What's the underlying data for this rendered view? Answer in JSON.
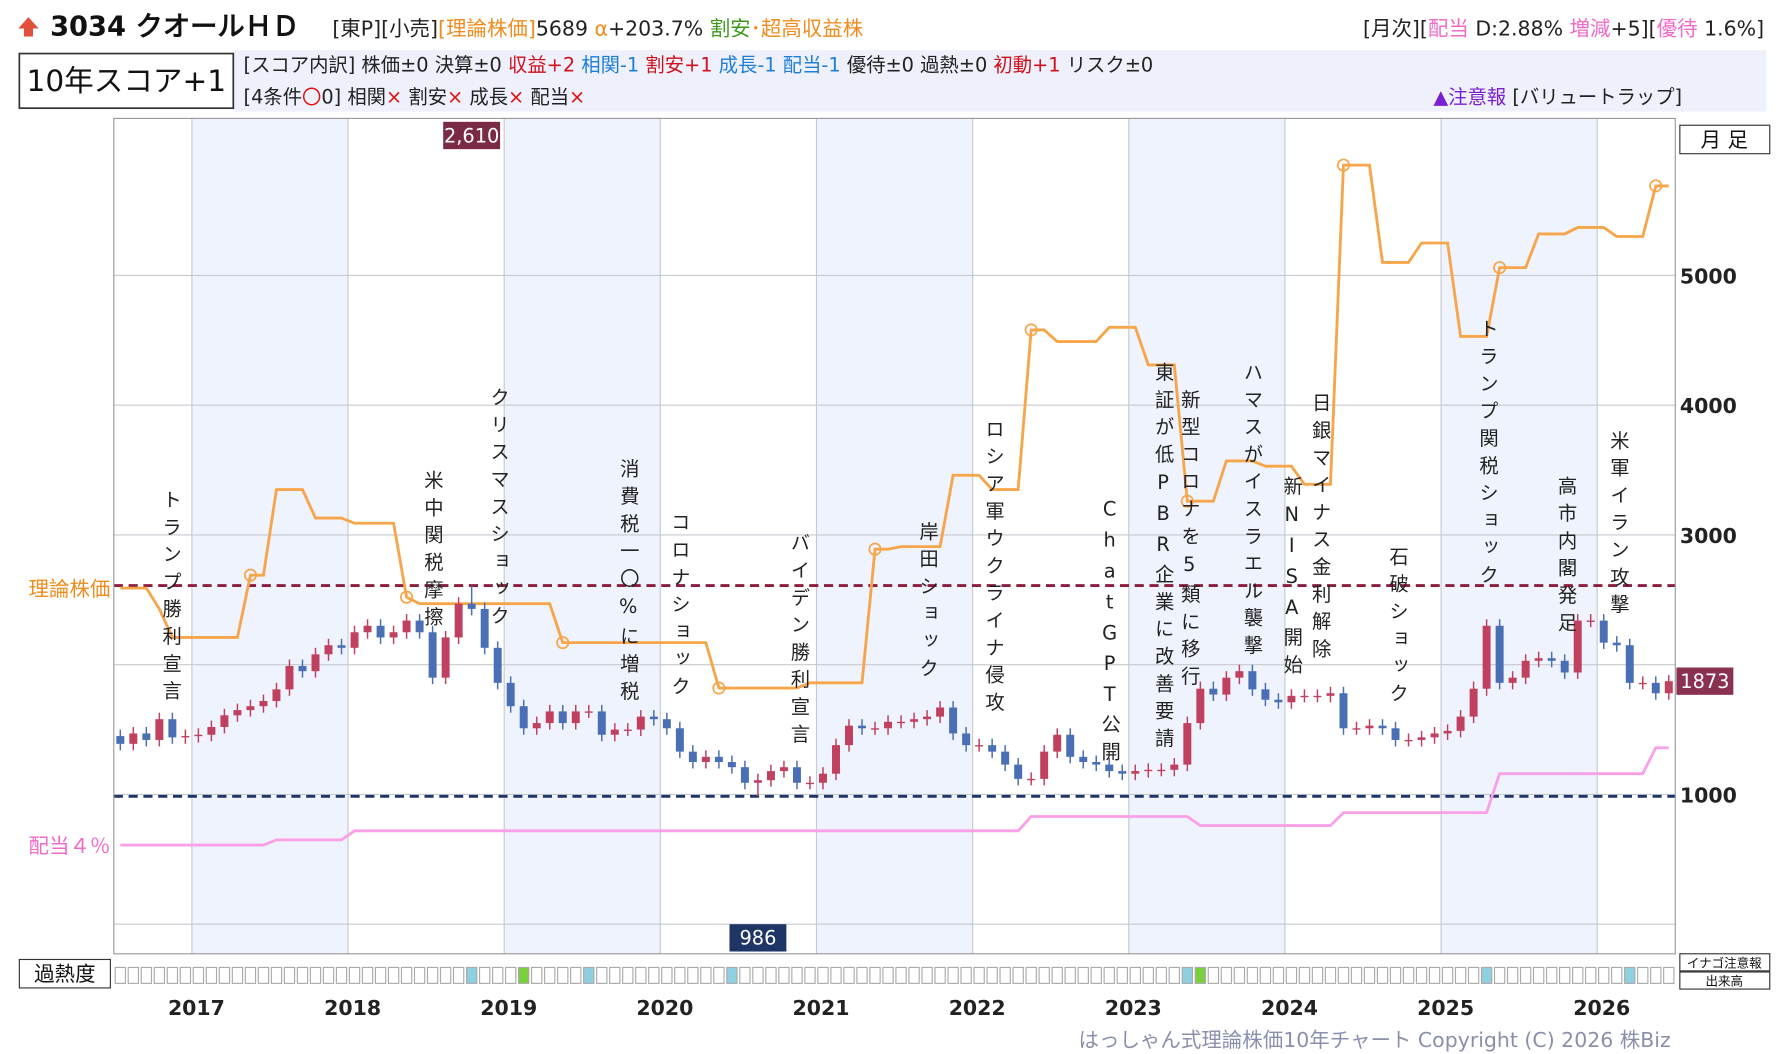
{
  "header": {
    "title": "3034 クオールＨＤ",
    "line1": [
      {
        "text": "[東P][小売]",
        "color": "#222222"
      },
      {
        "text": "[理論株価]",
        "color": "#f08c1e"
      },
      {
        "text": "5689 ",
        "color": "#222222"
      },
      {
        "text": "α",
        "color": "#f08c1e"
      },
      {
        "text": "+203.7% ",
        "color": "#222222"
      },
      {
        "text": "割安",
        "color": "#3a9a1a"
      },
      {
        "text": "･超高収益株",
        "color": "#f08c1e"
      }
    ],
    "line1_right": [
      {
        "text": "[月次][",
        "color": "#222222"
      },
      {
        "text": "配当",
        "color": "#f06bc8"
      },
      {
        "text": " D:2.88% ",
        "color": "#222222"
      },
      {
        "text": "増減",
        "color": "#f06bc8"
      },
      {
        "text": "+5][",
        "color": "#222222"
      },
      {
        "text": "優待",
        "color": "#f06bc8"
      },
      {
        "text": " 1.6%]",
        "color": "#222222"
      }
    ],
    "score": "10年スコア+1",
    "line2": [
      {
        "text": "[スコア内訳] 株価±0 決算±0 ",
        "color": "#222222"
      },
      {
        "text": "収益+2 ",
        "color": "#d0101a"
      },
      {
        "text": "相関-1 ",
        "color": "#1e7fd8"
      },
      {
        "text": "割安+1 ",
        "color": "#d0101a"
      },
      {
        "text": "成長-1 配当-1 ",
        "color": "#1e7fd8"
      },
      {
        "text": "優待±0 過熱±0 ",
        "color": "#222222"
      },
      {
        "text": "初動+1 ",
        "color": "#d0101a"
      },
      {
        "text": "リスク±0",
        "color": "#222222"
      }
    ],
    "line3": [
      {
        "text": "[4条件",
        "color": "#222222"
      },
      {
        "text": "〇",
        "color": "#e01010"
      },
      {
        "text": "0] 相関",
        "color": "#222222"
      },
      {
        "text": "× ",
        "color": "#e01010"
      },
      {
        "text": "割安",
        "color": "#222222"
      },
      {
        "text": "× ",
        "color": "#e01010"
      },
      {
        "text": "成長",
        "color": "#222222"
      },
      {
        "text": "× ",
        "color": "#e01010"
      },
      {
        "text": "配当",
        "color": "#222222"
      },
      {
        "text": "×",
        "color": "#e01010"
      }
    ],
    "line3_right": [
      {
        "text": "▲注意報",
        "color": "#7a1fd0"
      },
      {
        "text": " [バリュートラップ]",
        "color": "#222222"
      }
    ]
  },
  "chart_data": {
    "type": "candlestick",
    "period": "月 足",
    "xlim": [
      2016.5,
      2026.5
    ],
    "xticks": [
      2017,
      2018,
      2019,
      2020,
      2021,
      2022,
      2023,
      2024,
      2025,
      2026
    ],
    "ylim": [
      -228,
      6210
    ],
    "yticks": [
      1000,
      3000,
      4000,
      5000
    ],
    "ygrid": [
      0,
      1000,
      2000,
      3000,
      4000,
      5000
    ],
    "candles": {
      "up_color": "#c0405f",
      "down_color": "#4a6fb5",
      "open": [
        1450,
        1390,
        1470,
        1420,
        1580,
        1440,
        1450,
        1460,
        1520,
        1610,
        1650,
        1680,
        1720,
        1810,
        1990,
        1950,
        2080,
        2150,
        2130,
        2250,
        2300,
        2210,
        2250,
        2340,
        2250,
        1900,
        2210,
        2470,
        2430,
        2130,
        1860,
        1680,
        1510,
        1550,
        1640,
        1550,
        1640,
        1640,
        1460,
        1500,
        1500,
        1600,
        1580,
        1510,
        1330,
        1250,
        1290,
        1250,
        1210,
        1090,
        1110,
        1180,
        1210,
        1090,
        1090,
        1160,
        1380,
        1530,
        1510,
        1510,
        1560,
        1560,
        1580,
        1600,
        1670,
        1470,
        1380,
        1380,
        1330,
        1230,
        1120,
        1120,
        1330,
        1460,
        1290,
        1250,
        1230,
        1180,
        1160,
        1180,
        1190,
        1190,
        1230,
        1550,
        1815,
        1770,
        1900,
        1950,
        1810,
        1730,
        1710,
        1760,
        1760,
        1760,
        1780,
        1510,
        1510,
        1530,
        1510,
        1420,
        1420,
        1440,
        1470,
        1490,
        1600,
        1815,
        2300,
        1860,
        1900,
        2030,
        2050,
        2030,
        1940,
        2340,
        2340,
        2170,
        2150,
        1860,
        1860,
        1780
      ],
      "high": [
        1500,
        1520,
        1520,
        1630,
        1630,
        1500,
        1510,
        1570,
        1660,
        1700,
        1730,
        1770,
        1860,
        2040,
        2040,
        2130,
        2200,
        2200,
        2300,
        2350,
        2350,
        2300,
        2390,
        2390,
        2300,
        2260,
        2520,
        2610,
        2480,
        2180,
        1910,
        1730,
        1600,
        1690,
        1690,
        1690,
        1690,
        1690,
        1550,
        1550,
        1650,
        1650,
        1630,
        1560,
        1380,
        1340,
        1340,
        1300,
        1260,
        1160,
        1230,
        1260,
        1260,
        1140,
        1210,
        1430,
        1580,
        1580,
        1560,
        1610,
        1610,
        1630,
        1650,
        1720,
        1720,
        1520,
        1430,
        1430,
        1380,
        1280,
        1170,
        1380,
        1510,
        1510,
        1340,
        1300,
        1280,
        1230,
        1230,
        1240,
        1240,
        1280,
        1600,
        1870,
        1870,
        1950,
        2000,
        2000,
        1860,
        1780,
        1810,
        1810,
        1810,
        1830,
        1830,
        1560,
        1580,
        1580,
        1560,
        1470,
        1490,
        1520,
        1540,
        1650,
        1870,
        2350,
        2350,
        1950,
        2080,
        2100,
        2100,
        2080,
        2390,
        2390,
        2390,
        2220,
        2200,
        1910,
        1910,
        1920
      ],
      "low": [
        1340,
        1340,
        1370,
        1370,
        1390,
        1390,
        1400,
        1410,
        1470,
        1560,
        1600,
        1630,
        1670,
        1760,
        1900,
        1900,
        2030,
        2080,
        2080,
        2200,
        2160,
        2160,
        2200,
        2200,
        1850,
        1850,
        2160,
        2380,
        2080,
        1810,
        1630,
        1460,
        1460,
        1500,
        1500,
        1500,
        1590,
        1410,
        1410,
        1450,
        1450,
        1530,
        1460,
        1280,
        1200,
        1200,
        1200,
        1160,
        1040,
        986,
        1060,
        1130,
        1040,
        1040,
        1040,
        1110,
        1330,
        1460,
        1460,
        1460,
        1510,
        1510,
        1530,
        1550,
        1420,
        1330,
        1330,
        1280,
        1180,
        1070,
        1070,
        1070,
        1280,
        1240,
        1200,
        1180,
        1130,
        1110,
        1110,
        1130,
        1140,
        1140,
        1180,
        1500,
        1720,
        1720,
        1850,
        1760,
        1680,
        1660,
        1660,
        1710,
        1710,
        1710,
        1460,
        1460,
        1460,
        1460,
        1370,
        1370,
        1370,
        1390,
        1420,
        1440,
        1550,
        1760,
        1810,
        1810,
        1850,
        1980,
        1980,
        1890,
        1890,
        2290,
        2120,
        2100,
        1810,
        1810,
        1730,
        1730
      ],
      "close": [
        1390,
        1470,
        1420,
        1580,
        1440,
        1450,
        1460,
        1520,
        1610,
        1650,
        1680,
        1720,
        1810,
        1990,
        1950,
        2080,
        2150,
        2130,
        2250,
        2300,
        2210,
        2250,
        2340,
        2250,
        1900,
        2210,
        2470,
        2430,
        2130,
        1860,
        1680,
        1510,
        1550,
        1640,
        1550,
        1640,
        1640,
        1460,
        1500,
        1500,
        1600,
        1580,
        1510,
        1330,
        1250,
        1290,
        1250,
        1210,
        1090,
        1110,
        1180,
        1210,
        1090,
        1090,
        1160,
        1380,
        1530,
        1510,
        1510,
        1560,
        1560,
        1580,
        1600,
        1670,
        1470,
        1380,
        1380,
        1330,
        1230,
        1120,
        1120,
        1330,
        1460,
        1290,
        1250,
        1230,
        1180,
        1160,
        1180,
        1190,
        1190,
        1230,
        1550,
        1815,
        1770,
        1900,
        1950,
        1810,
        1730,
        1710,
        1760,
        1760,
        1760,
        1780,
        1510,
        1510,
        1530,
        1510,
        1420,
        1420,
        1440,
        1470,
        1490,
        1600,
        1815,
        2300,
        1860,
        1900,
        2030,
        2050,
        2030,
        1940,
        2340,
        2340,
        2170,
        2150,
        1860,
        1860,
        1780,
        1873
      ]
    },
    "series": [
      {
        "name": "理論株価",
        "color": "#f7a54a",
        "values": [
          2590,
          2590,
          2590,
          2430,
          2210,
          2210,
          2210,
          2210,
          2210,
          2210,
          2690,
          2690,
          3350,
          3350,
          3350,
          3130,
          3130,
          3130,
          3090,
          3090,
          3090,
          3090,
          2520,
          2470,
          2470,
          2470,
          2470,
          2470,
          2470,
          2470,
          2470,
          2470,
          2470,
          2470,
          2170,
          2170,
          2170,
          2170,
          2170,
          2170,
          2170,
          2170,
          2170,
          2170,
          2170,
          2170,
          1820,
          1820,
          1820,
          1820,
          1820,
          1820,
          1820,
          1860,
          1860,
          1860,
          1860,
          1860,
          2890,
          2890,
          2910,
          2910,
          2910,
          2910,
          3460,
          3460,
          3460,
          3350,
          3350,
          3350,
          4580,
          4580,
          4490,
          4490,
          4490,
          4490,
          4600,
          4600,
          4600,
          4310,
          4310,
          4310,
          3260,
          3260,
          3260,
          3570,
          3570,
          3570,
          3530,
          3530,
          3530,
          3390,
          3390,
          3390,
          5850,
          5850,
          5850,
          5100,
          5100,
          5100,
          5250,
          5250,
          5250,
          4530,
          4530,
          4530,
          5060,
          5060,
          5060,
          5320,
          5320,
          5320,
          5370,
          5370,
          5370,
          5300,
          5300,
          5300,
          5690,
          5690
        ]
      },
      {
        "name": "配当４％",
        "color": "#f9a0e8",
        "values": [
          610,
          610,
          610,
          610,
          610,
          610,
          610,
          610,
          610,
          610,
          610,
          610,
          650,
          650,
          650,
          650,
          650,
          650,
          720,
          720,
          720,
          720,
          720,
          720,
          720,
          720,
          720,
          720,
          720,
          720,
          720,
          720,
          720,
          720,
          720,
          720,
          720,
          720,
          720,
          720,
          720,
          720,
          720,
          720,
          720,
          720,
          720,
          720,
          720,
          720,
          720,
          720,
          720,
          720,
          720,
          720,
          720,
          720,
          720,
          720,
          720,
          720,
          720,
          720,
          720,
          720,
          720,
          720,
          720,
          720,
          830,
          830,
          830,
          830,
          830,
          830,
          830,
          830,
          830,
          830,
          830,
          830,
          830,
          760,
          760,
          760,
          760,
          760,
          760,
          760,
          760,
          760,
          760,
          760,
          860,
          860,
          860,
          860,
          860,
          860,
          860,
          860,
          860,
          860,
          860,
          860,
          1160,
          1160,
          1160,
          1160,
          1160,
          1160,
          1160,
          1160,
          1160,
          1160,
          1160,
          1160,
          1360,
          1360
        ]
      }
    ],
    "high_label": {
      "value": 2610,
      "label": "2,610"
    },
    "low_label": 986,
    "last_label": 1873,
    "annotations": [
      "トランプ勝利宣言",
      "米中関税摩擦",
      "クリスマスショック",
      "消費税一〇%に増税",
      "コロナショック",
      "バイデン勝利宣言",
      "岸田ショック",
      "ロシア軍ウクライナ侵攻",
      "ChatGPT公開",
      "東証が低PBR企業に改善要請",
      "新型コロナを5類に移行",
      "ハマスがイスラエル襲撃",
      "新NISA開始",
      "日銀マイナス金利解除",
      "石破ショック",
      "トランプ関税ショック",
      "高市内閣発足",
      "米軍イラン攻撃"
    ],
    "heat_label": "過熱度",
    "side_labels": [
      "イナゴ注意報",
      "出来高"
    ]
  },
  "footer": "はっしゃん式理論株価10年チャート Copyright (C) 2026 株Biz"
}
